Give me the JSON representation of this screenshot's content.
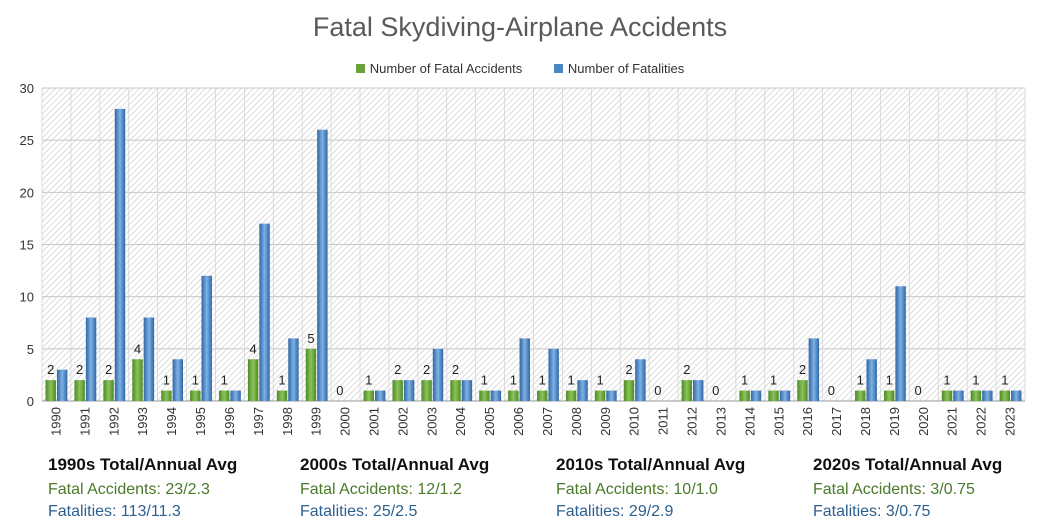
{
  "chart_data": {
    "type": "bar",
    "title": "Fatal Skydiving-Airplane Accidents",
    "categories": [
      "1990",
      "1991",
      "1992",
      "1993",
      "1994",
      "1995",
      "1996",
      "1997",
      "1998",
      "1999",
      "2000",
      "2001",
      "2002",
      "2003",
      "2004",
      "2005",
      "2006",
      "2007",
      "2008",
      "2009",
      "2010",
      "2011",
      "2012",
      "2013",
      "2014",
      "2015",
      "2016",
      "2017",
      "2018",
      "2019",
      "2020",
      "2021",
      "2022",
      "2023"
    ],
    "series": [
      {
        "name": "Number of Fatal Accidents",
        "color": "#6aa33c",
        "values": [
          2,
          2,
          2,
          4,
          1,
          1,
          1,
          4,
          1,
          5,
          0,
          1,
          2,
          2,
          2,
          1,
          1,
          1,
          1,
          1,
          2,
          0,
          2,
          0,
          1,
          1,
          2,
          0,
          1,
          1,
          0,
          1,
          1,
          1
        ]
      },
      {
        "name": "Number of Fatalities",
        "color": "#4a86c5",
        "values": [
          3,
          8,
          28,
          8,
          4,
          12,
          1,
          17,
          6,
          26,
          0,
          1,
          2,
          5,
          2,
          1,
          6,
          5,
          2,
          1,
          4,
          0,
          2,
          0,
          1,
          1,
          6,
          0,
          4,
          11,
          0,
          1,
          1,
          1
        ]
      }
    ],
    "ylim": [
      0,
      30
    ],
    "yticks": [
      0,
      5,
      10,
      15,
      20,
      25,
      30
    ],
    "grid": true,
    "legend_position": "top"
  },
  "summaries": [
    {
      "title": "1990s Total/Annual Avg",
      "accidents": "Fatal Accidents: 23/2.3",
      "fatalities": "Fatalities: 113/11.3"
    },
    {
      "title": "2000s Total/Annual Avg",
      "accidents": "Fatal Accidents: 12/1.2",
      "fatalities": "Fatalities: 25/2.5"
    },
    {
      "title": "2010s Total/Annual Avg",
      "accidents": "Fatal Accidents: 10/1.0",
      "fatalities": "Fatalities: 29/2.9"
    },
    {
      "title": "2020s Total/Annual Avg",
      "accidents": "Fatal Accidents: 3/0.75",
      "fatalities": "Fatalities: 3/0.75"
    }
  ]
}
